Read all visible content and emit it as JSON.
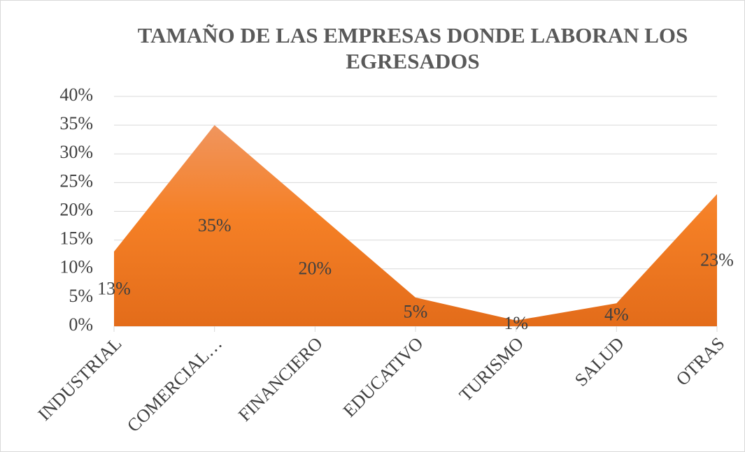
{
  "chart_data": {
    "type": "area",
    "title": "TAMAÑO DE LAS EMPRESAS DONDE LABORAN LOS EGRESADOS",
    "categories": [
      "INDUSTRIAL",
      "COMERCIAL…",
      "FINANCIERO",
      "EDUCATIVO",
      "TURISMO",
      "SALUD",
      "OTRAS"
    ],
    "values": [
      13,
      35,
      20,
      5,
      1,
      4,
      23
    ],
    "value_labels": [
      "13%",
      "35%",
      "20%",
      "5%",
      "1%",
      "4%",
      "23%"
    ],
    "color": "#ed7d31",
    "ylim": [
      0,
      40
    ],
    "yticks": [
      {
        "value": 0,
        "label": "0%"
      },
      {
        "value": 5,
        "label": "5%"
      },
      {
        "value": 10,
        "label": "10%"
      },
      {
        "value": 15,
        "label": "15%"
      },
      {
        "value": 20,
        "label": "20%"
      },
      {
        "value": 25,
        "label": "25%"
      },
      {
        "value": 30,
        "label": "30%"
      },
      {
        "value": 35,
        "label": "35%"
      },
      {
        "value": 40,
        "label": "40%"
      }
    ],
    "grid": true
  }
}
